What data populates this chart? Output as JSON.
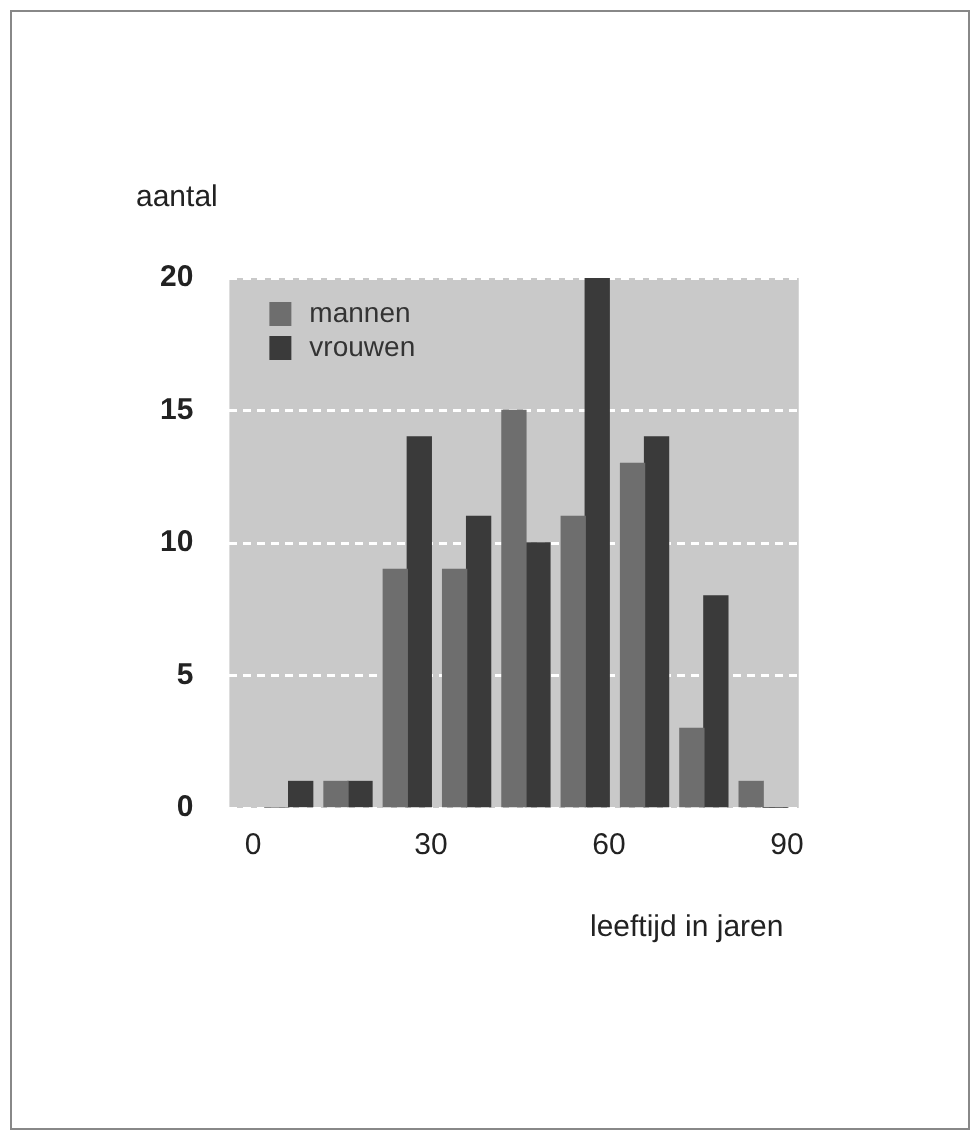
{
  "chart_data": {
    "type": "bar",
    "ylabel": "aantal",
    "xlabel": "leeftijd in jaren",
    "x": [
      6,
      16,
      26,
      36,
      46,
      56,
      66,
      76,
      86
    ],
    "series": [
      {
        "name": "mannen",
        "color": "#6e6e6e",
        "values": [
          0,
          1,
          9,
          9,
          15,
          11,
          13,
          3,
          1
        ]
      },
      {
        "name": "vrouwen",
        "color": "#3a3a3a",
        "values": [
          1,
          1,
          14,
          11,
          10,
          20,
          14,
          8,
          0
        ]
      }
    ],
    "xlim": [
      -4,
      92
    ],
    "xticks": [
      0,
      30,
      60,
      90
    ],
    "ylim": [
      0,
      20
    ],
    "yticks": [
      0,
      5,
      10,
      15,
      20
    ],
    "grid": "y",
    "legend": "top left"
  }
}
